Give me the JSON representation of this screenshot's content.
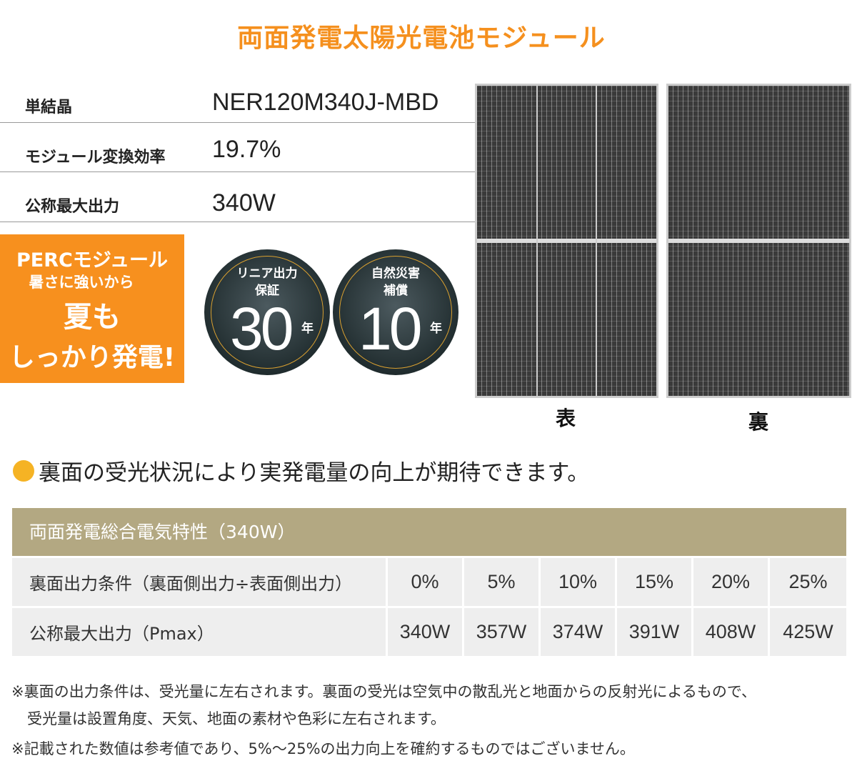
{
  "title": "両面発電太陽光電池モジュール",
  "specs": [
    {
      "label": "単結晶",
      "value": "NER120M340J-MBD"
    },
    {
      "label": "モジュール変換効率",
      "value": "19.7%"
    },
    {
      "label": "公称最大出力",
      "value": "340W"
    }
  ],
  "promo": {
    "line1": "PERCモジュール",
    "line2": "暑さに強いから",
    "line3": "夏も",
    "line4": "しっかり発電!"
  },
  "badges": [
    {
      "line1": "リニア出力",
      "line2": "保証",
      "number": "30",
      "unit": "年"
    },
    {
      "line1": "自然災害",
      "line2": "補償",
      "number": "10",
      "unit": "年"
    }
  ],
  "panels": {
    "front": "表",
    "back": "裏"
  },
  "subheading": "裏面の受光状況により実発電量の向上が期待できます。",
  "table": {
    "title": "両面発電総合電気特性（340W）",
    "rows": [
      {
        "label": "裏面出力条件（裏面側出力÷表面側出力）",
        "cells": [
          "0%",
          "5%",
          "10%",
          "15%",
          "20%",
          "25%"
        ]
      },
      {
        "label": "公称最大出力（Pmax）",
        "cells": [
          "340W",
          "357W",
          "374W",
          "391W",
          "408W",
          "425W"
        ]
      }
    ]
  },
  "notes": [
    "※裏面の出力条件は、受光量に左右されます。裏面の受光は空気中の散乱光と地面からの反射光によるもので、",
    "受光量は設置角度、天気、地面の素材や色彩に左右されます。",
    "※記載された数値は参考値であり、5%～25%の出力向上を確約するものではございません。"
  ],
  "colors": {
    "accent": "#f5901e",
    "table_header": "#b3a882",
    "dot": "#f5b324"
  }
}
